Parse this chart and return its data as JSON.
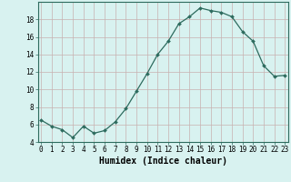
{
  "x": [
    0,
    1,
    2,
    3,
    4,
    5,
    6,
    7,
    8,
    9,
    10,
    11,
    12,
    13,
    14,
    15,
    16,
    17,
    18,
    19,
    20,
    21,
    22,
    23
  ],
  "y": [
    6.5,
    5.8,
    5.4,
    4.5,
    5.8,
    5.0,
    5.3,
    6.3,
    7.8,
    9.8,
    11.8,
    14.0,
    15.5,
    17.5,
    18.3,
    19.3,
    19.0,
    18.8,
    18.3,
    16.6,
    15.5,
    12.7,
    11.5,
    11.6
  ],
  "line_color": "#2d6b5e",
  "marker": "D",
  "marker_size": 2.0,
  "bg_color": "#d8f2f0",
  "grid_major_color_h": "#c8b0b0",
  "grid_major_color_v": "#c8b0b0",
  "xlabel": "Humidex (Indice chaleur)",
  "ylim": [
    4,
    20
  ],
  "yticks": [
    4,
    6,
    8,
    10,
    12,
    14,
    16,
    18
  ],
  "xticks": [
    0,
    1,
    2,
    3,
    4,
    5,
    6,
    7,
    8,
    9,
    10,
    11,
    12,
    13,
    14,
    15,
    16,
    17,
    18,
    19,
    20,
    21,
    22,
    23
  ],
  "axis_fontsize": 6.5,
  "tick_fontsize": 5.5,
  "xlabel_fontsize": 7.0
}
